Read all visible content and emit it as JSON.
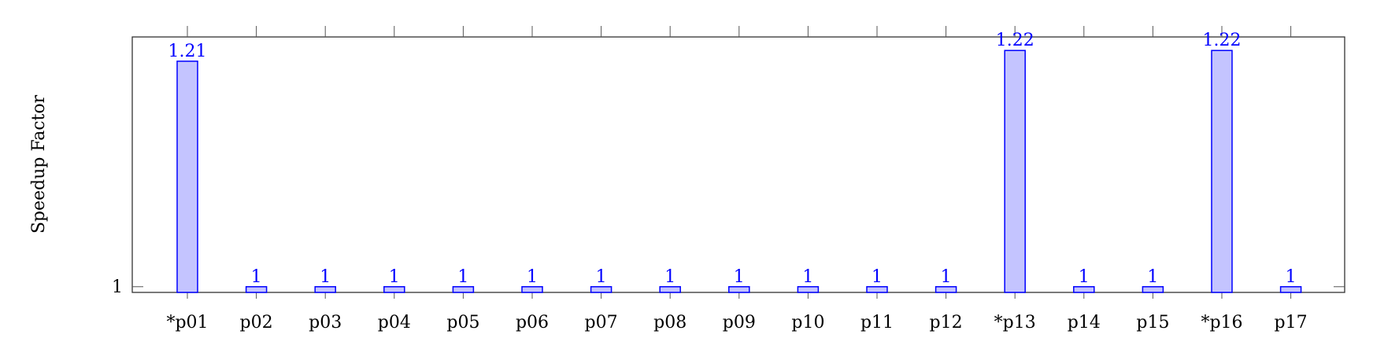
{
  "chart_data": {
    "type": "bar",
    "title": "",
    "xlabel": "",
    "ylabel": "Speedup Factor",
    "categories": [
      "*p01",
      "p02",
      "p03",
      "p04",
      "p05",
      "p06",
      "p07",
      "p08",
      "p09",
      "p10",
      "p11",
      "p12",
      "*p13",
      "p14",
      "p15",
      "*p16",
      "p17"
    ],
    "values": [
      1.21,
      1,
      1,
      1,
      1,
      1,
      1,
      1,
      1,
      1,
      1,
      1,
      1.22,
      1,
      1,
      1.22,
      1
    ],
    "data_labels": [
      "1.21",
      "1",
      "1",
      "1",
      "1",
      "1",
      "1",
      "1",
      "1",
      "1",
      "1",
      "1",
      "1.22",
      "1",
      "1",
      "1.22",
      "1"
    ],
    "y_ticks": [
      1
    ],
    "y_tick_labels": [
      "1"
    ],
    "ylim": [
      0.9947,
      1.2326
    ],
    "bar_fill": "#c4c4ff",
    "bar_stroke": "#0000ff",
    "label_color": "#0000ff",
    "grid": false,
    "legend": "none"
  }
}
